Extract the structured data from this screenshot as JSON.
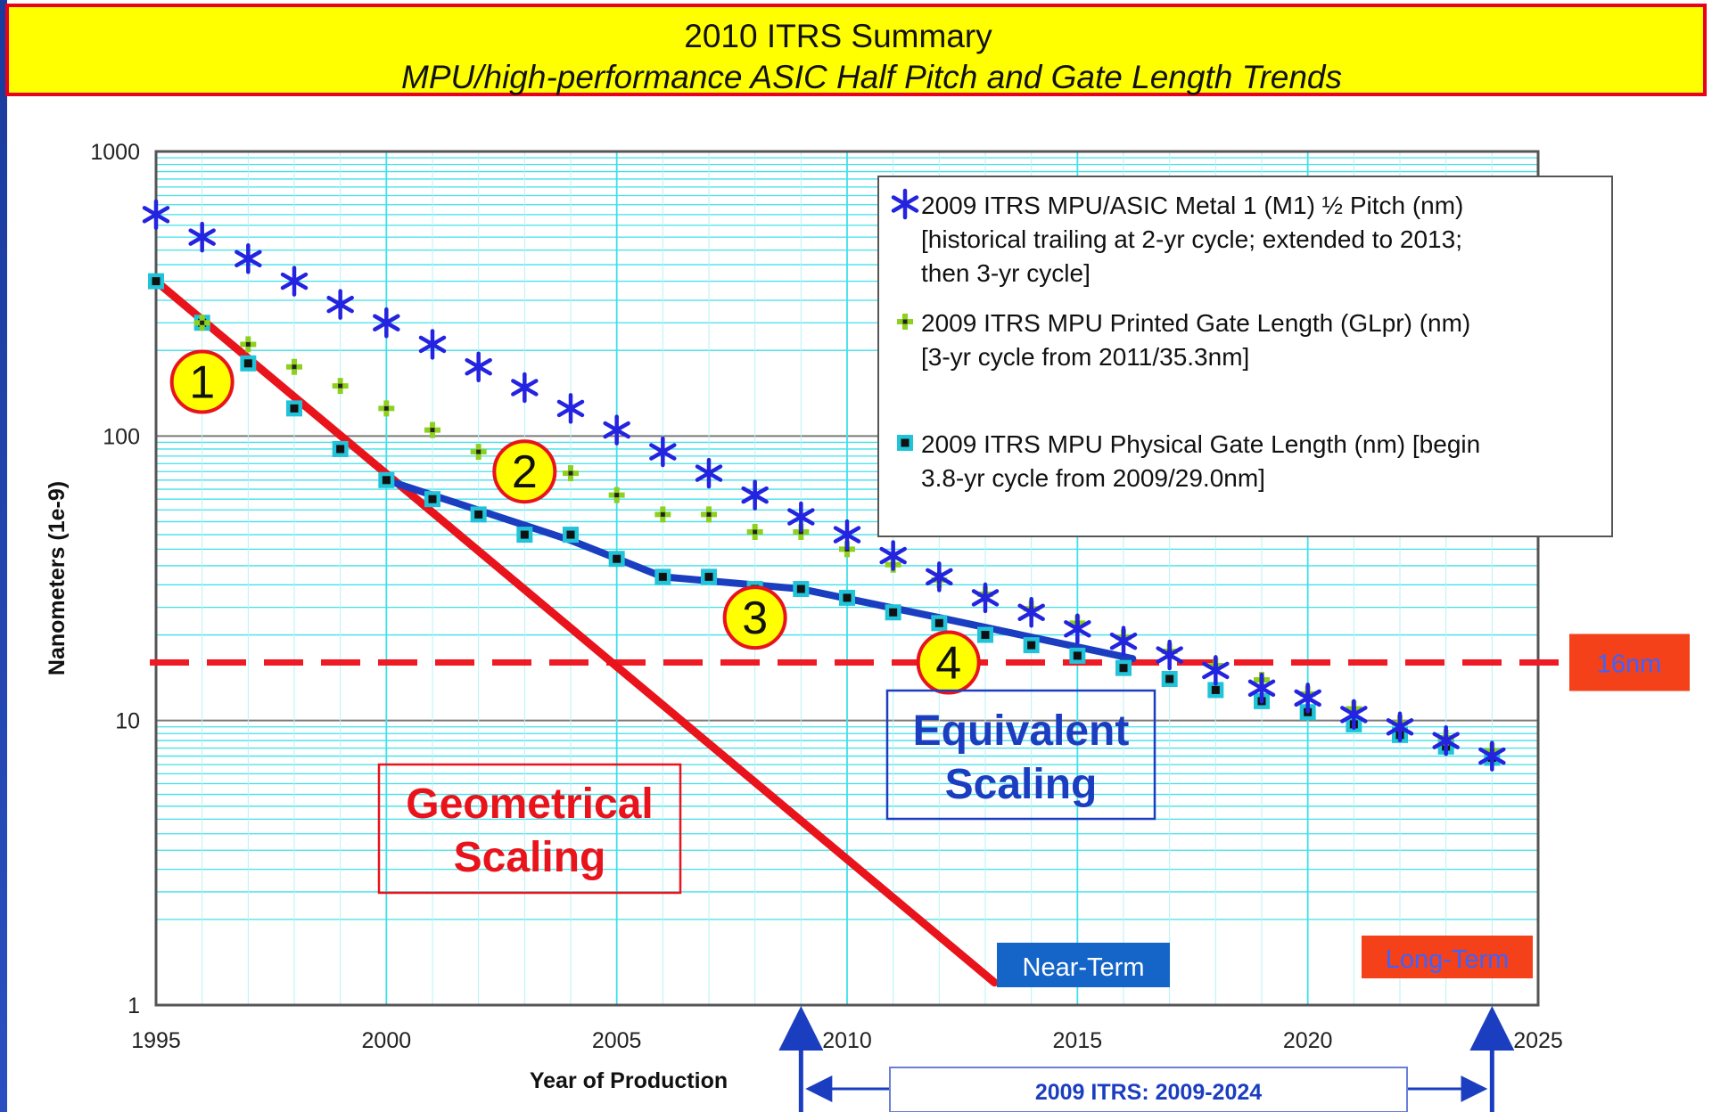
{
  "header": {
    "title": "2010 ITRS Summary",
    "subtitle": "MPU/high-performance ASIC Half Pitch and Gate Length Trends"
  },
  "chart_data": {
    "type": "scatter",
    "title": "2010 ITRS Summary",
    "subtitle": "MPU/high-performance ASIC Half Pitch and Gate Length Trends",
    "xlabel": "Year of Production",
    "ylabel": "Nanometers (1e-9)",
    "xlim": [
      1995,
      2025
    ],
    "ylim": [
      1,
      1000
    ],
    "y_scale": "log",
    "x_ticks": [
      "1995",
      "2000",
      "2005",
      "2010",
      "2015",
      "2020",
      "2025"
    ],
    "y_ticks": [
      "1",
      "10",
      "100",
      "1000"
    ],
    "grid": true,
    "legend_position": "top-right",
    "series": [
      {
        "name": "2009 ITRS MPU/ASIC Metal 1 (M1) ½ Pitch (nm)",
        "name_lines": [
          "2009 ITRS MPU/ASIC Metal 1 (M1) ½ Pitch (nm)",
          "[historical trailing at 2-yr cycle; extended to 2013;",
          "then 3-yr cycle]"
        ],
        "marker": "asterisk",
        "color": "#2424e0",
        "x": [
          1995,
          1996,
          1997,
          1998,
          1999,
          2000,
          2001,
          2002,
          2003,
          2004,
          2005,
          2006,
          2007,
          2008,
          2009,
          2010,
          2011,
          2012,
          2013,
          2014,
          2015,
          2016,
          2017,
          2018,
          2019,
          2020,
          2021,
          2022,
          2023,
          2024
        ],
        "y": [
          600,
          500,
          420,
          350,
          290,
          250,
          210,
          175,
          148,
          125,
          105,
          88,
          74,
          62,
          52,
          45,
          38,
          32,
          27,
          24,
          21,
          19,
          17,
          15,
          13,
          12,
          10.5,
          9.5,
          8.5,
          7.5
        ]
      },
      {
        "name": "2009 ITRS MPU Printed Gate Length (GLpr) (nm)",
        "name_lines": [
          "2009 ITRS MPU Printed Gate Length (GLpr) (nm)",
          "[3-yr cycle from 2011/35.3nm]"
        ],
        "marker": "plus",
        "color": "#8dd01e",
        "x": [
          1996,
          1997,
          1998,
          1999,
          2000,
          2001,
          2002,
          2003,
          2004,
          2005,
          2006,
          2007,
          2008,
          2009,
          2010,
          2011,
          2012,
          2013,
          2014,
          2015,
          2016,
          2017,
          2018,
          2019,
          2020,
          2021,
          2022,
          2023,
          2024
        ],
        "y": [
          250,
          210,
          175,
          150,
          125,
          105,
          88,
          76,
          74,
          62,
          53,
          53,
          46,
          46,
          40,
          35.3,
          31.2,
          27.8,
          24.7,
          22,
          19.6,
          17.5,
          15.6,
          13.9,
          12.4,
          11,
          9.8,
          8.7,
          7.8
        ]
      },
      {
        "name": "2009 ITRS MPU Physical Gate Length (nm)",
        "name_lines": [
          "2009 ITRS MPU Physical Gate Length (nm) [begin",
          "3.8-yr cycle from 2009/29.0nm]"
        ],
        "marker": "square",
        "color": "#21c3d9",
        "x": [
          1995,
          1996,
          1997,
          1998,
          1999,
          2000,
          2001,
          2002,
          2003,
          2004,
          2005,
          2006,
          2007,
          2008,
          2009,
          2010,
          2011,
          2012,
          2013,
          2014,
          2015,
          2016,
          2017,
          2018,
          2019,
          2020,
          2021,
          2022,
          2023,
          2024
        ],
        "y": [
          350,
          250,
          180,
          125,
          90,
          70,
          60,
          53,
          45,
          45,
          37,
          32,
          32,
          29,
          29,
          27,
          24,
          22,
          20,
          18.4,
          16.9,
          15.3,
          14,
          12.8,
          11.7,
          10.7,
          9.7,
          8.9,
          8.1,
          7.4
        ]
      }
    ],
    "trend_lines": [
      {
        "name": "Geometrical Scaling",
        "color": "#e8131b",
        "x": [
          1995,
          2013.2
        ],
        "y": [
          350,
          1.2
        ]
      },
      {
        "name": "Equivalent Scaling",
        "color": "#1b3ec0",
        "x": [
          2000,
          2004,
          2006,
          2009,
          2012,
          2016.2
        ],
        "y": [
          70,
          43,
          32,
          29,
          23,
          16.5
        ]
      }
    ],
    "reference_line": {
      "label": "16nm",
      "y": 16
    },
    "annotations": {
      "circles": [
        {
          "label": "1",
          "x": 1996,
          "y": 155
        },
        {
          "label": "2",
          "x": 2003,
          "y": 75
        },
        {
          "label": "3",
          "x": 2008,
          "y": 23
        },
        {
          "label": "4",
          "x": 2012.2,
          "y": 16
        }
      ],
      "geometrical_box": [
        "Geometrical",
        "Scaling"
      ],
      "equivalent_box": [
        "Equivalent",
        "Scaling"
      ],
      "near_term": "Near-Term",
      "long_term": "Long-Term",
      "span_label": "2009 ITRS:  2009-2024",
      "span_range": [
        2009,
        2024
      ]
    }
  }
}
